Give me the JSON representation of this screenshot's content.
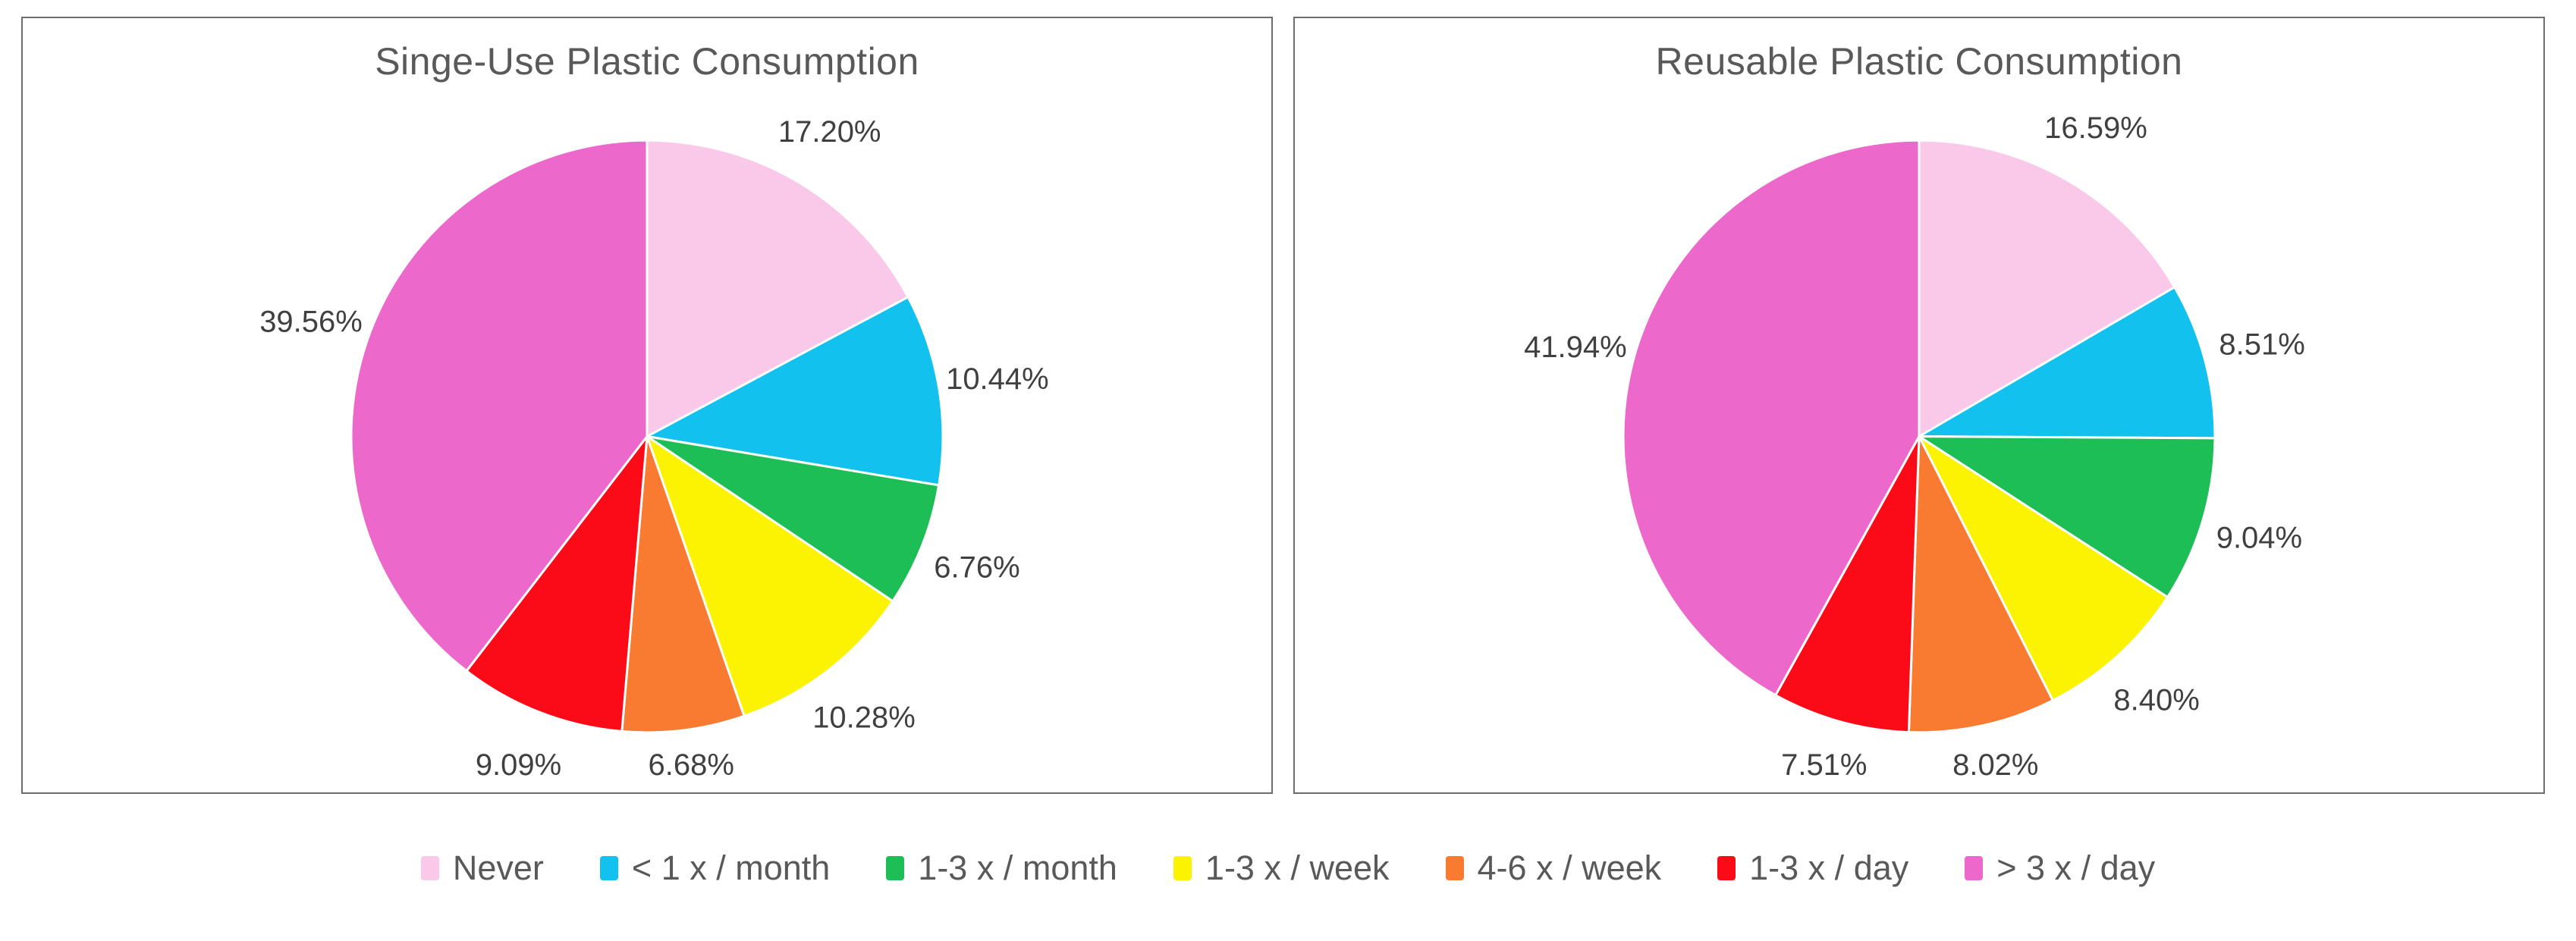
{
  "style": {
    "background": "#FFFFFF",
    "panel_border_color": "#6D6D6D",
    "title_color": "#595959",
    "data_label_color": "#404040",
    "legend_text_color": "#595959",
    "slice_separator_color": "#FFFFFF"
  },
  "categories": [
    "Never",
    "< 1 x / month",
    "1-3 x / month",
    "1-3 x / week",
    "4-6 x / week",
    "1-3 x / day",
    "> 3 x / day"
  ],
  "category_colors": {
    "Never": "#FAC8E9",
    "< 1 x / month": "#12C1EE",
    "1-3 x / month": "#1CBE55",
    "1-3 x / week": "#FCF303",
    "4-6 x / week": "#F87B31",
    "1-3 x / day": "#FB0A18",
    "> 3 x / day": "#EC69CB"
  },
  "chart_data": [
    {
      "type": "pie",
      "title": "Singe-Use Plastic Consumption",
      "categories": [
        "Never",
        "< 1 x / month",
        "1-3 x / month",
        "1-3 x / week",
        "4-6 x / week",
        "1-3 x / day",
        "> 3 x / day"
      ],
      "values": [
        17.2,
        10.44,
        6.76,
        10.28,
        6.68,
        9.09,
        39.56
      ],
      "labels": [
        "17.20%",
        "10.44%",
        "6.76%",
        "10.28%",
        "6.68%",
        "9.09%",
        "39.56%"
      ],
      "colors": [
        "#FAC8E9",
        "#12C1EE",
        "#1CBE55",
        "#FCF303",
        "#F87B31",
        "#FB0A18",
        "#EC69CB"
      ],
      "start_angle_deg": 0,
      "direction": "clockwise",
      "label_position": "outside-end",
      "legend_position": "bottom"
    },
    {
      "type": "pie",
      "title": "Reusable Plastic Consumption",
      "categories": [
        "Never",
        "< 1 x / month",
        "1-3 x / month",
        "1-3 x / week",
        "4-6 x / week",
        "1-3 x / day",
        "> 3 x / day"
      ],
      "values": [
        16.59,
        8.51,
        9.04,
        8.4,
        8.02,
        7.51,
        41.94
      ],
      "labels": [
        "16.59%",
        "8.51%",
        "9.04%",
        "8.40%",
        "8.02%",
        "7.51%",
        "41.94%"
      ],
      "colors": [
        "#FAC8E9",
        "#12C1EE",
        "#1CBE55",
        "#FCF303",
        "#F87B31",
        "#FB0A18",
        "#EC69CB"
      ],
      "start_angle_deg": 0,
      "direction": "clockwise",
      "label_position": "outside-end",
      "legend_position": "bottom"
    }
  ],
  "legend": {
    "position": "bottom",
    "items": [
      {
        "label": "Never",
        "color": "#FAC8E9"
      },
      {
        "label": "< 1 x / month",
        "color": "#12C1EE"
      },
      {
        "label": "1-3 x / month",
        "color": "#1CBE55"
      },
      {
        "label": "1-3 x / week",
        "color": "#FCF303"
      },
      {
        "label": "4-6 x / week",
        "color": "#F87B31"
      },
      {
        "label": "1-3 x / day",
        "color": "#FB0A18"
      },
      {
        "label": "> 3 x / day",
        "color": "#EC69CB"
      }
    ]
  }
}
